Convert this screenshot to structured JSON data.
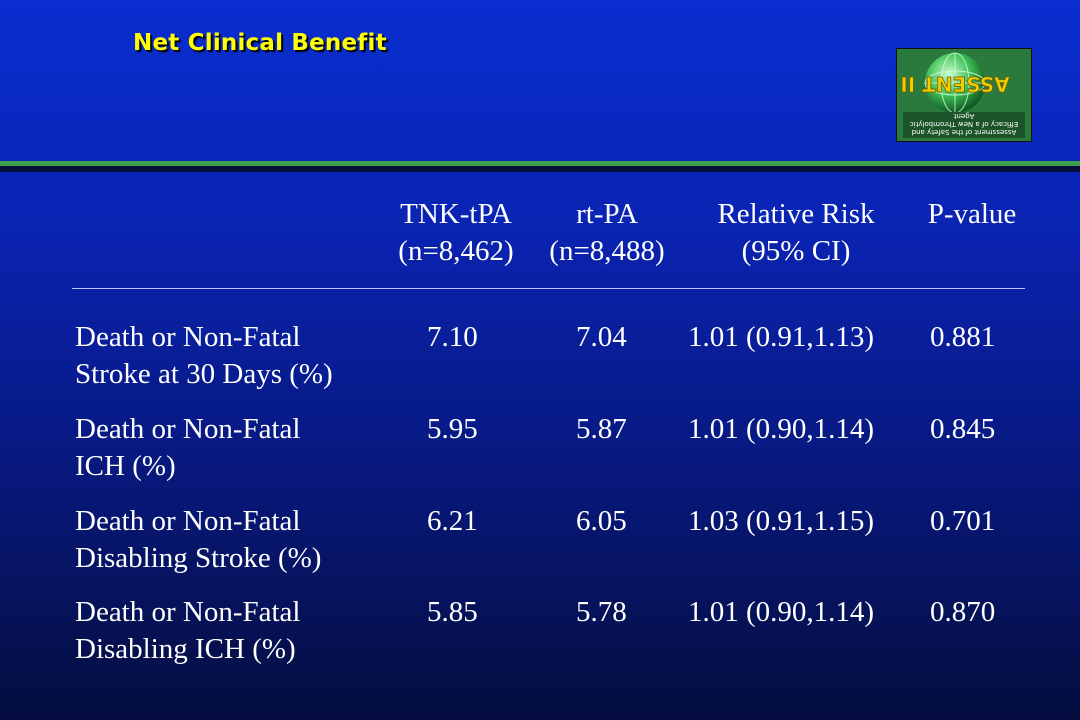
{
  "title": "Net Clinical Benefit",
  "logo": {
    "icon": "globe-icon",
    "wordmark": "ASSENT II",
    "caption": "Assessment of the Safety and Efficacy of a New Thrombolytic Agent"
  },
  "colors": {
    "title": "#ffff00",
    "accent_line": "#3aa24a",
    "background_top": "#0a2ed0",
    "background_bottom": "#050d3e"
  },
  "table": {
    "headers": [
      {
        "line1": "TNK-tPA",
        "line2": "(n=8,462)"
      },
      {
        "line1": "rt-PA",
        "line2": "(n=8,488)"
      },
      {
        "line1": "Relative Risk",
        "line2": "(95% CI)"
      },
      {
        "line1": "P-value",
        "line2": ""
      }
    ],
    "rows": [
      {
        "label1": "Death or Non-Fatal",
        "label2": "Stroke at 30 Days (%)",
        "tnk": "7.10",
        "rtpa": "7.04",
        "rr": "1.01 (0.91,1.13)",
        "p": "0.881"
      },
      {
        "label1": "Death or Non-Fatal",
        "label2": "ICH (%)",
        "tnk": "5.95",
        "rtpa": "5.87",
        "rr": "1.01 (0.90,1.14)",
        "p": "0.845"
      },
      {
        "label1": "Death or Non-Fatal",
        "label2": "Disabling Stroke (%)",
        "tnk": "6.21",
        "rtpa": "6.05",
        "rr": "1.03 (0.91,1.15)",
        "p": "0.701"
      },
      {
        "label1": "Death or Non-Fatal",
        "label2": "Disabling ICH (%)",
        "tnk": "5.85",
        "rtpa": "5.78",
        "rr": "1.01 (0.90,1.14)",
        "p": "0.870"
      }
    ]
  }
}
